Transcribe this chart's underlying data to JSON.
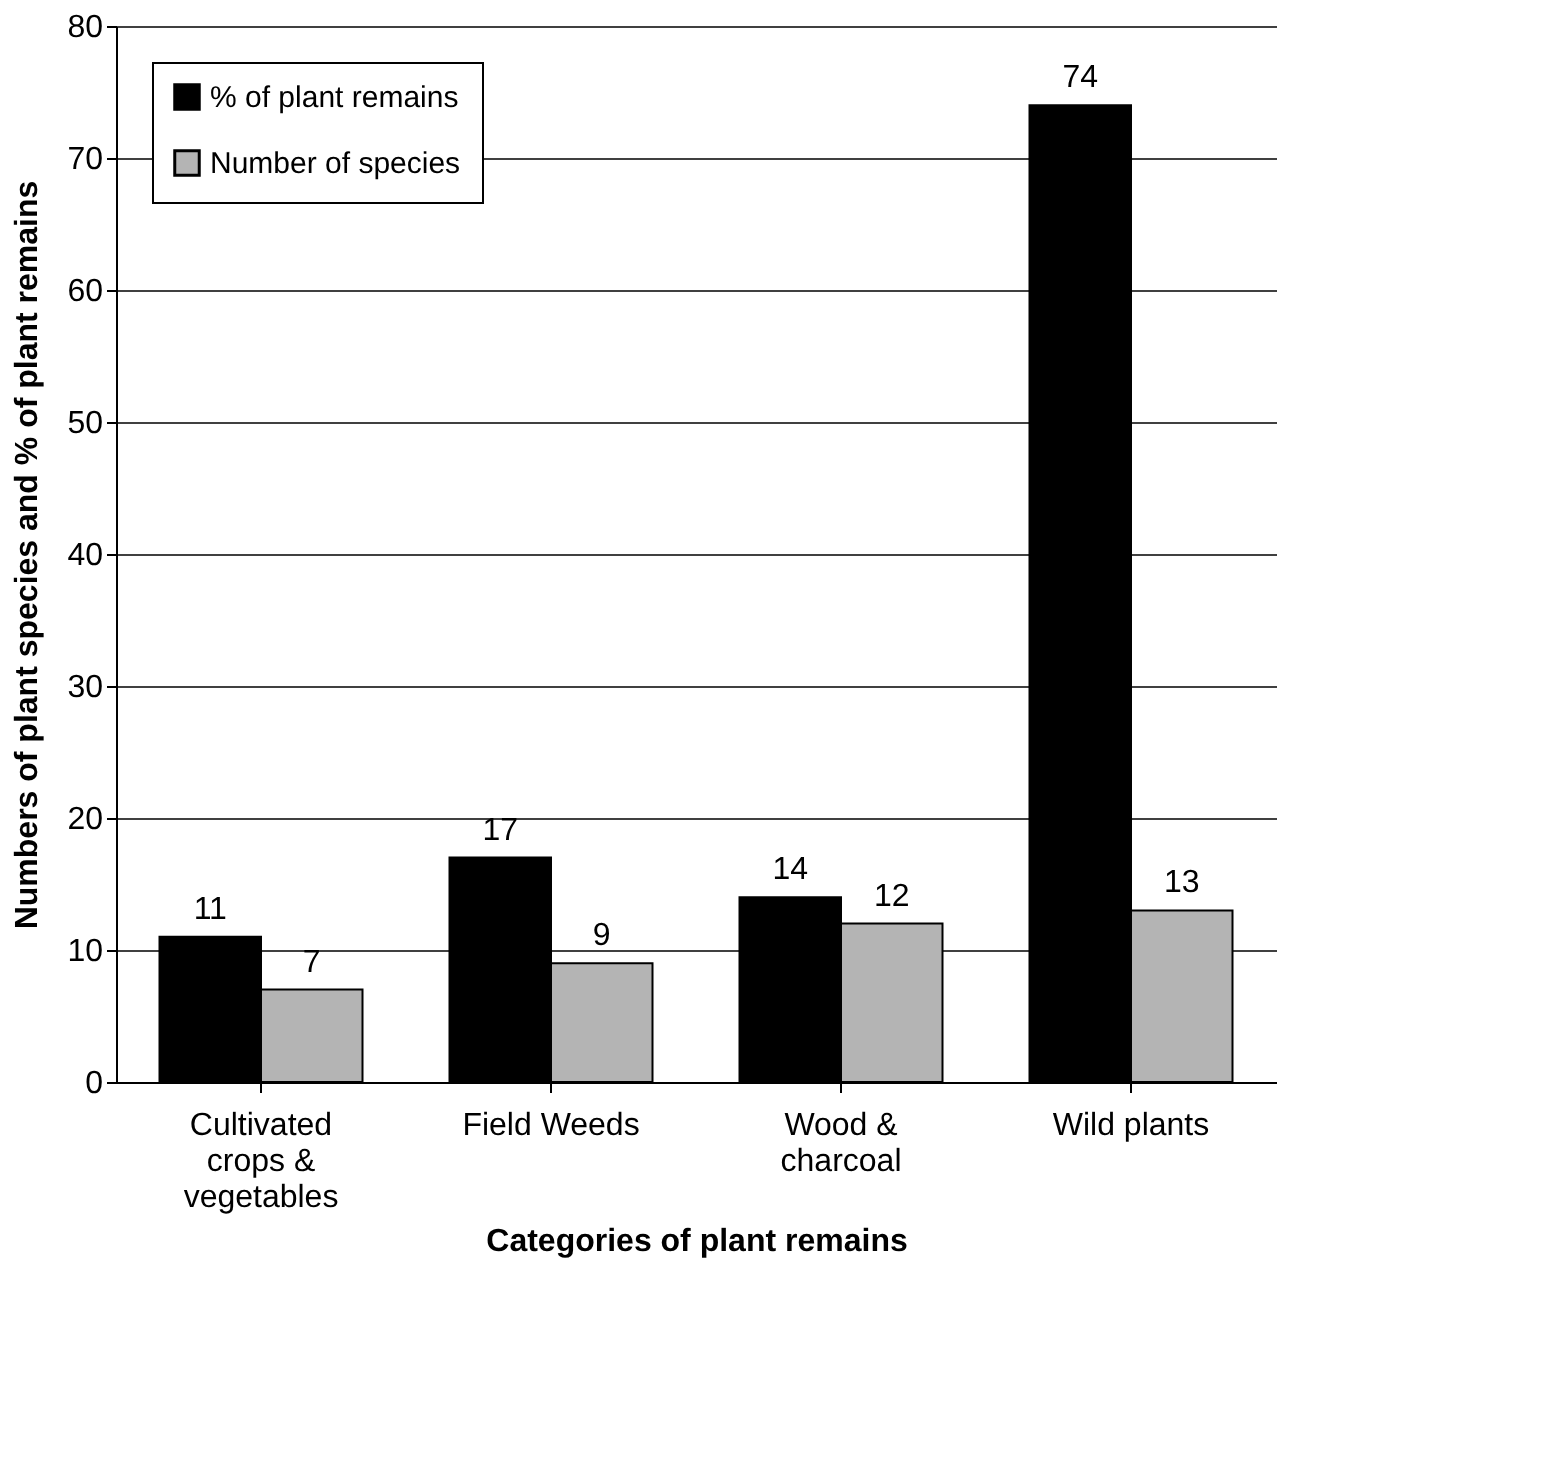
{
  "chart_data": {
    "type": "bar",
    "xlabel": "Categories of plant remains",
    "ylabel": "Numbers of plant species and % of plant remains",
    "categories": [
      "Cultivated crops & vegetables",
      "Field Weeds",
      "Wood & charcoal",
      "Wild plants"
    ],
    "series": [
      {
        "name": "% of plant remains",
        "color": "#000000",
        "values": [
          11,
          17,
          14,
          74
        ]
      },
      {
        "name": "Number of species",
        "color": "#b4b4b4",
        "values": [
          7,
          9,
          12,
          13
        ]
      }
    ],
    "ylim": [
      0,
      80
    ],
    "yticks": [
      0,
      10,
      20,
      30,
      40,
      50,
      60,
      70,
      80
    ],
    "grid": "y",
    "legend": "top left",
    "data_labels": true
  }
}
